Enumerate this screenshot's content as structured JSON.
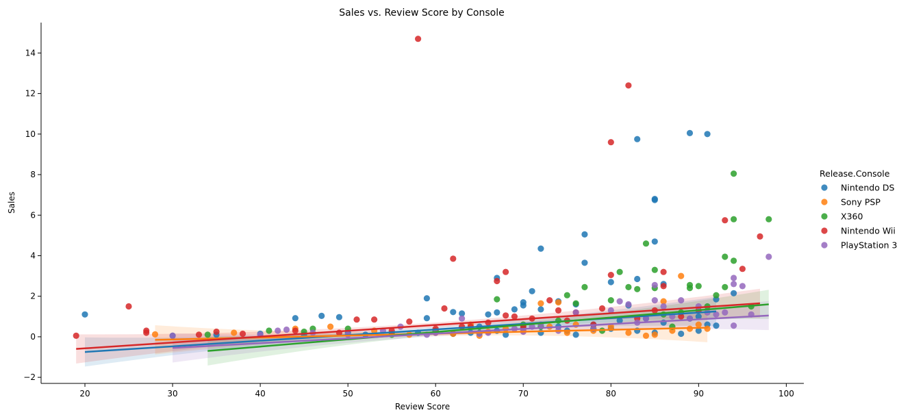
{
  "chart_data": {
    "type": "scatter",
    "title": "Sales vs. Review Score by Console",
    "xlabel": "Review Score",
    "ylabel": "Sales",
    "xlim": [
      15,
      102
    ],
    "ylim": [
      -2.3,
      15.5
    ],
    "xticks": [
      20,
      30,
      40,
      50,
      60,
      70,
      80,
      90,
      100
    ],
    "yticks": [
      -2,
      0,
      2,
      4,
      6,
      8,
      10,
      12,
      14
    ],
    "xtick_labels": [
      "20",
      "30",
      "40",
      "50",
      "60",
      "70",
      "80",
      "90",
      "100"
    ],
    "ytick_labels": [
      "−2",
      "0",
      "2",
      "4",
      "6",
      "8",
      "10",
      "12",
      "14"
    ],
    "grid": false,
    "legend_title": "Release.Console",
    "legend_position": "right",
    "series": [
      {
        "name": "Nintendo DS",
        "color": "#1f77b4",
        "points": [
          [
            20,
            1.1
          ],
          [
            44,
            0.92
          ],
          [
            47,
            1.03
          ],
          [
            49,
            0.97
          ],
          [
            59,
            1.9
          ],
          [
            59,
            0.92
          ],
          [
            62,
            1.22
          ],
          [
            63,
            1.15
          ],
          [
            66,
            1.1
          ],
          [
            67,
            2.9
          ],
          [
            67,
            1.2
          ],
          [
            69,
            1.35
          ],
          [
            70,
            1.7
          ],
          [
            70,
            1.55
          ],
          [
            71,
            2.25
          ],
          [
            72,
            4.35
          ],
          [
            72,
            1.35
          ],
          [
            74,
            1.75
          ],
          [
            76,
            1.6
          ],
          [
            77,
            5.05
          ],
          [
            77,
            3.65
          ],
          [
            80,
            2.7
          ],
          [
            82,
            1.55
          ],
          [
            83,
            9.75
          ],
          [
            83,
            2.85
          ],
          [
            85,
            6.8
          ],
          [
            85,
            6.75
          ],
          [
            85,
            4.7
          ],
          [
            86,
            2.6
          ],
          [
            89,
            10.05
          ],
          [
            90,
            0.3
          ],
          [
            91,
            10.0
          ],
          [
            92,
            0.55
          ],
          [
            92,
            1.85
          ],
          [
            94,
            2.15
          ],
          [
            30,
            0.05
          ],
          [
            35,
            0.1
          ],
          [
            40,
            0.15
          ],
          [
            45,
            0.1
          ],
          [
            50,
            0.2
          ],
          [
            52,
            0.1
          ],
          [
            55,
            0.15
          ],
          [
            58,
            0.2
          ],
          [
            60,
            0.3
          ],
          [
            62,
            0.15
          ],
          [
            64,
            0.2
          ],
          [
            65,
            0.5
          ],
          [
            67,
            0.3
          ],
          [
            68,
            0.1
          ],
          [
            70,
            0.4
          ],
          [
            72,
            0.2
          ],
          [
            74,
            0.5
          ],
          [
            75,
            0.3
          ],
          [
            76,
            0.1
          ],
          [
            78,
            0.6
          ],
          [
            80,
            0.4
          ],
          [
            81,
            0.8
          ],
          [
            83,
            0.3
          ],
          [
            84,
            0.9
          ],
          [
            85,
            0.2
          ],
          [
            86,
            0.7
          ],
          [
            88,
            0.15
          ],
          [
            89,
            0.9
          ],
          [
            90,
            1.0
          ],
          [
            91,
            0.6
          ]
        ],
        "trend": [
          [
            20,
            -0.75
          ],
          [
            92,
            1.25
          ]
        ]
      },
      {
        "name": "Sony PSP",
        "color": "#ff7f0e",
        "points": [
          [
            28,
            0.12
          ],
          [
            37,
            0.2
          ],
          [
            44,
            0.4
          ],
          [
            48,
            0.5
          ],
          [
            53,
            0.3
          ],
          [
            57,
            0.1
          ],
          [
            60,
            0.2
          ],
          [
            62,
            0.15
          ],
          [
            64,
            0.6
          ],
          [
            66,
            0.25
          ],
          [
            68,
            0.4
          ],
          [
            70,
            0.3
          ],
          [
            72,
            1.65
          ],
          [
            73,
            0.5
          ],
          [
            74,
            1.7
          ],
          [
            75,
            0.2
          ],
          [
            76,
            0.6
          ],
          [
            78,
            0.3
          ],
          [
            80,
            0.5
          ],
          [
            82,
            0.2
          ],
          [
            84,
            0.05
          ],
          [
            85,
            0.1
          ],
          [
            86,
            1.75
          ],
          [
            87,
            0.3
          ],
          [
            88,
            3.0
          ],
          [
            89,
            0.4
          ],
          [
            90,
            0.6
          ],
          [
            91,
            0.4
          ],
          [
            55,
            0.15
          ],
          [
            65,
            0.05
          ]
        ],
        "trend": [
          [
            28,
            -0.15
          ],
          [
            91,
            0.45
          ]
        ]
      },
      {
        "name": "X360",
        "color": "#2ca02c",
        "points": [
          [
            34,
            0.1
          ],
          [
            41,
            0.3
          ],
          [
            45,
            0.25
          ],
          [
            46,
            0.4
          ],
          [
            50,
            0.4
          ],
          [
            55,
            0.1
          ],
          [
            60,
            0.3
          ],
          [
            65,
            0.2
          ],
          [
            67,
            1.85
          ],
          [
            70,
            0.6
          ],
          [
            72,
            0.5
          ],
          [
            74,
            0.8
          ],
          [
            75,
            2.05
          ],
          [
            76,
            1.65
          ],
          [
            77,
            2.45
          ],
          [
            78,
            0.4
          ],
          [
            80,
            1.8
          ],
          [
            81,
            3.2
          ],
          [
            82,
            2.45
          ],
          [
            83,
            2.35
          ],
          [
            84,
            4.6
          ],
          [
            85,
            3.3
          ],
          [
            85,
            2.4
          ],
          [
            87,
            0.5
          ],
          [
            89,
            2.55
          ],
          [
            89,
            2.4
          ],
          [
            90,
            2.5
          ],
          [
            91,
            1.5
          ],
          [
            92,
            2.05
          ],
          [
            93,
            3.95
          ],
          [
            93,
            2.45
          ],
          [
            94,
            8.05
          ],
          [
            94,
            5.8
          ],
          [
            94,
            3.75
          ],
          [
            96,
            1.5
          ],
          [
            98,
            5.8
          ],
          [
            79,
            0.3
          ],
          [
            86,
            1.1
          ],
          [
            88,
            1.2
          ]
        ],
        "trend": [
          [
            34,
            -0.7
          ],
          [
            98,
            1.6
          ]
        ]
      },
      {
        "name": "Nintendo Wii",
        "color": "#d62728",
        "points": [
          [
            19,
            0.05
          ],
          [
            25,
            1.5
          ],
          [
            27,
            0.3
          ],
          [
            27,
            0.2
          ],
          [
            33,
            0.1
          ],
          [
            35,
            0.25
          ],
          [
            38,
            0.15
          ],
          [
            44,
            0.3
          ],
          [
            49,
            0.2
          ],
          [
            51,
            0.85
          ],
          [
            53,
            0.85
          ],
          [
            57,
            0.75
          ],
          [
            58,
            14.7
          ],
          [
            61,
            1.4
          ],
          [
            62,
            3.85
          ],
          [
            64,
            0.5
          ],
          [
            66,
            0.7
          ],
          [
            67,
            2.75
          ],
          [
            68,
            3.2
          ],
          [
            68,
            1.05
          ],
          [
            69,
            1.0
          ],
          [
            71,
            0.9
          ],
          [
            73,
            1.8
          ],
          [
            74,
            1.3
          ],
          [
            76,
            1.2
          ],
          [
            79,
            1.4
          ],
          [
            80,
            9.6
          ],
          [
            80,
            3.05
          ],
          [
            82,
            12.4
          ],
          [
            85,
            1.3
          ],
          [
            86,
            3.2
          ],
          [
            86,
            2.5
          ],
          [
            90,
            1.3
          ],
          [
            93,
            5.75
          ],
          [
            95,
            3.35
          ],
          [
            97,
            4.95
          ],
          [
            55,
            0.3
          ],
          [
            60,
            0.4
          ],
          [
            63,
            0.5
          ],
          [
            70,
            0.5
          ],
          [
            75,
            0.8
          ],
          [
            78,
            0.6
          ],
          [
            83,
            0.9
          ],
          [
            88,
            1.0
          ]
        ],
        "trend": [
          [
            19,
            -0.6
          ],
          [
            97,
            1.65
          ]
        ]
      },
      {
        "name": "PlayStation 3",
        "color": "#9467bd",
        "points": [
          [
            30,
            0.05
          ],
          [
            40,
            0.1
          ],
          [
            42,
            0.3
          ],
          [
            43,
            0.35
          ],
          [
            46,
            0.2
          ],
          [
            50,
            0.1
          ],
          [
            54,
            0.3
          ],
          [
            56,
            0.5
          ],
          [
            59,
            0.1
          ],
          [
            63,
            0.9
          ],
          [
            66,
            0.2
          ],
          [
            69,
            0.4
          ],
          [
            71,
            0.5
          ],
          [
            74,
            0.3
          ],
          [
            76,
            1.2
          ],
          [
            78,
            0.4
          ],
          [
            80,
            1.3
          ],
          [
            81,
            1.75
          ],
          [
            82,
            1.6
          ],
          [
            84,
            0.9
          ],
          [
            85,
            2.55
          ],
          [
            85,
            1.8
          ],
          [
            86,
            1.5
          ],
          [
            88,
            1.8
          ],
          [
            89,
            0.9
          ],
          [
            90,
            1.5
          ],
          [
            91,
            1.2
          ],
          [
            92,
            1.1
          ],
          [
            93,
            1.2
          ],
          [
            94,
            2.9
          ],
          [
            94,
            2.6
          ],
          [
            94,
            0.55
          ],
          [
            95,
            2.5
          ],
          [
            96,
            1.1
          ],
          [
            98,
            3.95
          ],
          [
            60,
            0.2
          ],
          [
            65,
            0.15
          ],
          [
            70,
            0.25
          ],
          [
            72,
            0.6
          ],
          [
            83,
            0.7
          ],
          [
            87,
            1.0
          ]
        ],
        "trend": [
          [
            30,
            -0.55
          ],
          [
            98,
            1.05
          ]
        ]
      }
    ]
  }
}
